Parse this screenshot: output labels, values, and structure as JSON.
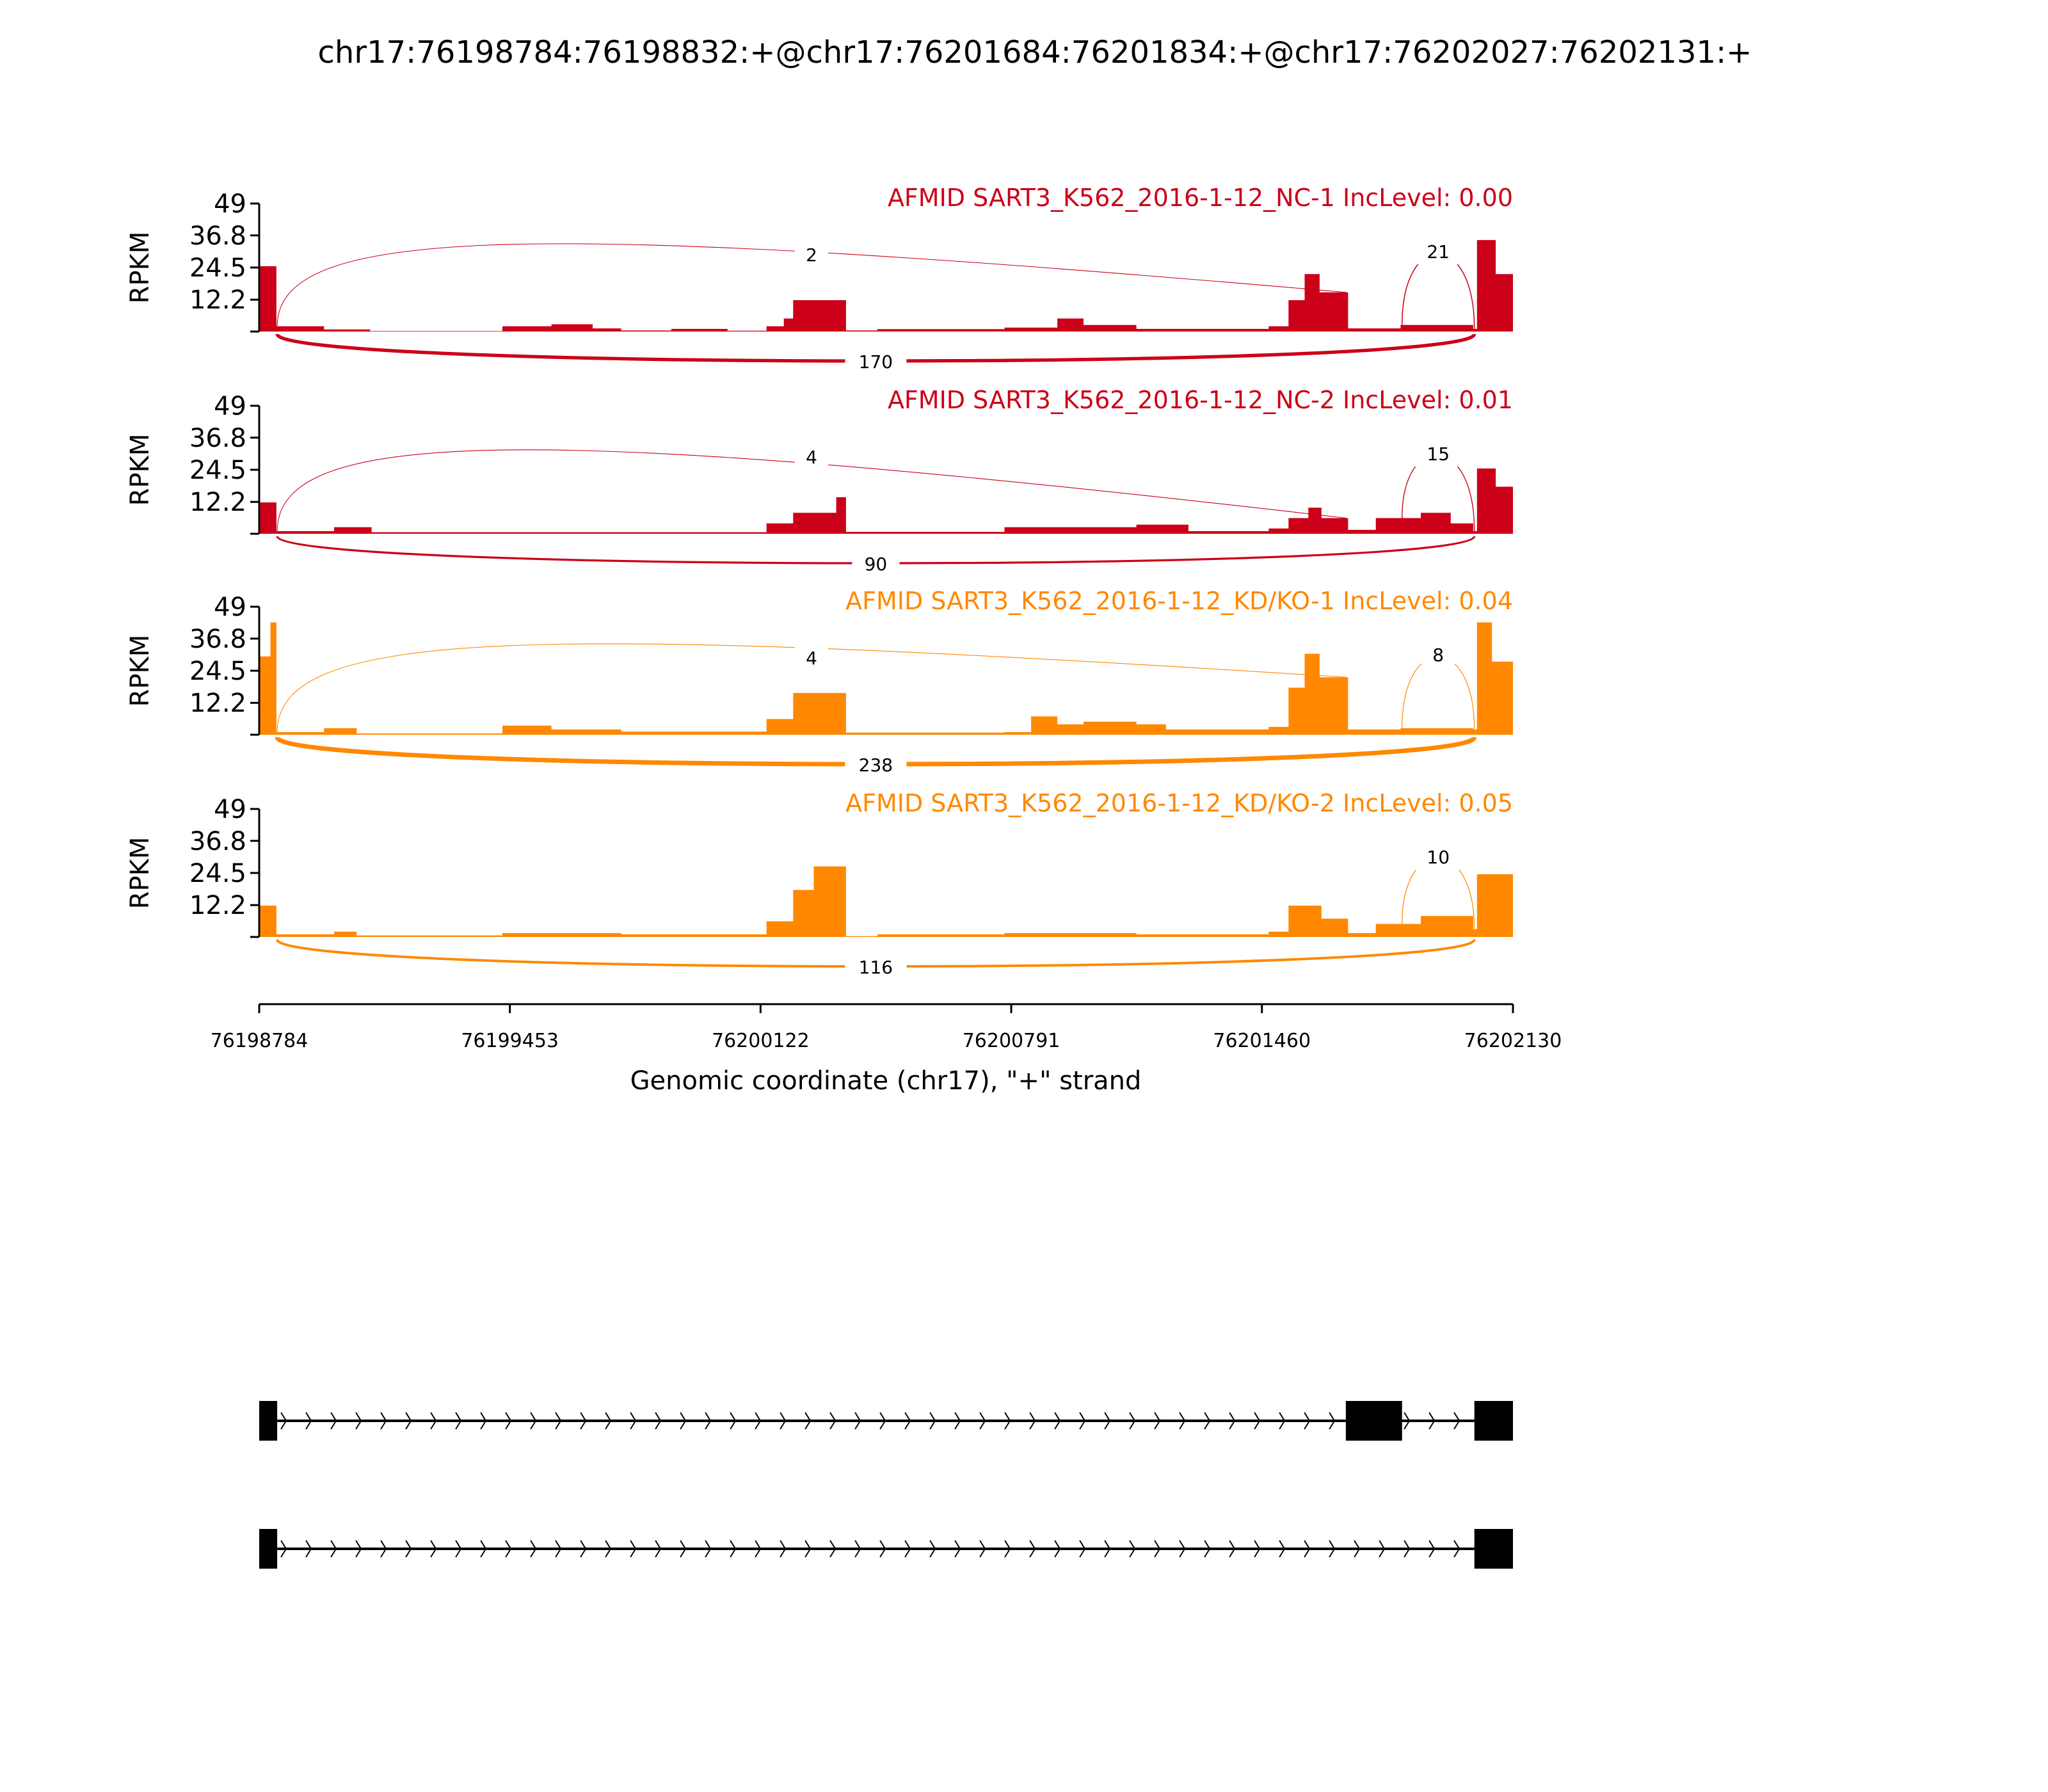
{
  "chart_data": {
    "type": "area",
    "title": "chr17:76198784:76198832:+@chr17:76201684:76201834:+@chr17:76202027:76202131:+",
    "xlabel": "Genomic coordinate (chr17), \"+\" strand",
    "ylabel": "RPKM",
    "xlim": [
      76198784,
      76202130
    ],
    "ylim": [
      0,
      49
    ],
    "x_ticks": [
      "76198784",
      "76199453",
      "76200122",
      "76200791",
      "76201460",
      "76202130"
    ],
    "y_ticks": [
      "49",
      "36.8",
      "24.5",
      "12.2"
    ],
    "colors": {
      "NC": "#CC0018",
      "KD": "#FF8800",
      "gene": "#000000"
    },
    "samples": [
      {
        "label": "AFMID SART3_K562_2016-1-12_NC-1 IncLevel: 0.00",
        "group": "NC",
        "coverage_note": "segments: [start_offset_bp, end_offset_bp, rpkm]",
        "coverage": [
          [
            0,
            46,
            25
          ],
          [
            46,
            173,
            2
          ],
          [
            173,
            296,
            0.8
          ],
          [
            296,
            649,
            0.2
          ],
          [
            649,
            780,
            2
          ],
          [
            780,
            890,
            2.8
          ],
          [
            890,
            966,
            1.2
          ],
          [
            966,
            1100,
            0.4
          ],
          [
            1100,
            1250,
            1
          ],
          [
            1250,
            1354,
            0.3
          ],
          [
            1354,
            1400,
            2
          ],
          [
            1400,
            1425,
            5
          ],
          [
            1425,
            1566,
            12
          ],
          [
            1566,
            1650,
            0.4
          ],
          [
            1650,
            1989,
            0.9
          ],
          [
            1989,
            2130,
            1.5
          ],
          [
            2130,
            2200,
            5
          ],
          [
            2200,
            2341,
            2.5
          ],
          [
            2341,
            2694,
            1
          ],
          [
            2694,
            2747,
            2
          ],
          [
            2747,
            2790,
            12
          ],
          [
            2790,
            2830,
            22
          ],
          [
            2830,
            2906,
            15
          ],
          [
            2906,
            3046,
            1.2
          ],
          [
            3046,
            3240,
            2.5
          ],
          [
            3240,
            3250,
            1
          ],
          [
            3250,
            3300,
            35
          ],
          [
            3300,
            3346,
            22
          ]
        ],
        "junctions": [
          {
            "from": 76198832,
            "to": 76201684,
            "count": "2",
            "side": "above"
          },
          {
            "from": 76201834,
            "to": 76202027,
            "count": "21",
            "side": "above"
          },
          {
            "from": 76198832,
            "to": 76202027,
            "count": "170",
            "side": "below"
          }
        ]
      },
      {
        "label": "AFMID SART3_K562_2016-1-12_NC-2 IncLevel: 0.01",
        "group": "NC",
        "coverage_note": "segments: [start_offset_bp, end_offset_bp, rpkm]",
        "coverage": [
          [
            0,
            46,
            12
          ],
          [
            46,
            200,
            1
          ],
          [
            200,
            300,
            2.5
          ],
          [
            300,
            1354,
            0.6
          ],
          [
            1354,
            1425,
            4
          ],
          [
            1425,
            1540,
            8
          ],
          [
            1540,
            1566,
            14
          ],
          [
            1566,
            1989,
            0.7
          ],
          [
            1989,
            2341,
            2.5
          ],
          [
            2341,
            2480,
            3.5
          ],
          [
            2480,
            2694,
            1
          ],
          [
            2694,
            2747,
            2
          ],
          [
            2747,
            2800,
            6
          ],
          [
            2800,
            2835,
            10
          ],
          [
            2835,
            2906,
            6
          ],
          [
            2906,
            2980,
            1.5
          ],
          [
            2980,
            3100,
            6
          ],
          [
            3100,
            3180,
            8
          ],
          [
            3180,
            3240,
            4
          ],
          [
            3240,
            3250,
            1
          ],
          [
            3250,
            3300,
            25
          ],
          [
            3300,
            3346,
            18
          ]
        ],
        "junctions": [
          {
            "from": 76198832,
            "to": 76201684,
            "count": "4",
            "side": "above"
          },
          {
            "from": 76201834,
            "to": 76202027,
            "count": "15",
            "side": "above"
          },
          {
            "from": 76198832,
            "to": 76202027,
            "count": "90",
            "side": "below"
          }
        ]
      },
      {
        "label": "AFMID SART3_K562_2016-1-12_KD/KO-1 IncLevel: 0.04",
        "group": "KD",
        "coverage_note": "segments: [start_offset_bp, end_offset_bp, rpkm]",
        "coverage": [
          [
            0,
            30,
            30
          ],
          [
            30,
            46,
            43
          ],
          [
            46,
            173,
            1
          ],
          [
            173,
            260,
            2.5
          ],
          [
            260,
            649,
            0.5
          ],
          [
            649,
            780,
            3.5
          ],
          [
            780,
            966,
            2
          ],
          [
            966,
            1354,
            1.2
          ],
          [
            1354,
            1425,
            6
          ],
          [
            1425,
            1566,
            16
          ],
          [
            1566,
            1989,
            0.8
          ],
          [
            1989,
            2060,
            1
          ],
          [
            2060,
            2130,
            7
          ],
          [
            2130,
            2200,
            4
          ],
          [
            2200,
            2341,
            5
          ],
          [
            2341,
            2420,
            4
          ],
          [
            2420,
            2694,
            2
          ],
          [
            2694,
            2747,
            3
          ],
          [
            2747,
            2790,
            18
          ],
          [
            2790,
            2830,
            31
          ],
          [
            2830,
            2906,
            22
          ],
          [
            2906,
            3046,
            2
          ],
          [
            3046,
            3240,
            2.5
          ],
          [
            3240,
            3250,
            2
          ],
          [
            3250,
            3290,
            43
          ],
          [
            3290,
            3346,
            28
          ]
        ],
        "junctions": [
          {
            "from": 76198832,
            "to": 76201684,
            "count": "4",
            "side": "above"
          },
          {
            "from": 76201834,
            "to": 76202027,
            "count": "8",
            "side": "above"
          },
          {
            "from": 76198832,
            "to": 76202027,
            "count": "238",
            "side": "below"
          }
        ]
      },
      {
        "label": "AFMID SART3_K562_2016-1-12_KD/KO-2 IncLevel: 0.05",
        "group": "KD",
        "coverage_note": "segments: [start_offset_bp, end_offset_bp, rpkm]",
        "coverage": [
          [
            0,
            46,
            12
          ],
          [
            46,
            200,
            1
          ],
          [
            200,
            260,
            2
          ],
          [
            260,
            649,
            0.6
          ],
          [
            649,
            966,
            1.5
          ],
          [
            966,
            1354,
            1
          ],
          [
            1354,
            1425,
            6
          ],
          [
            1425,
            1480,
            18
          ],
          [
            1480,
            1566,
            27
          ],
          [
            1566,
            1650,
            0.3
          ],
          [
            1650,
            1989,
            1
          ],
          [
            1989,
            2341,
            1.5
          ],
          [
            2341,
            2694,
            1
          ],
          [
            2694,
            2747,
            2
          ],
          [
            2747,
            2835,
            12
          ],
          [
            2835,
            2906,
            7
          ],
          [
            2906,
            2980,
            1.5
          ],
          [
            2980,
            3100,
            5
          ],
          [
            3100,
            3240,
            8
          ],
          [
            3240,
            3250,
            3
          ],
          [
            3250,
            3346,
            24
          ]
        ],
        "junctions": [
          {
            "from": 76201834,
            "to": 76202027,
            "count": "10",
            "side": "above"
          },
          {
            "from": 76198832,
            "to": 76202027,
            "count": "116",
            "side": "below"
          }
        ]
      }
    ],
    "gene_models": [
      {
        "exons": [
          [
            76198784,
            76198832
          ],
          [
            76201684,
            76201834
          ],
          [
            76202027,
            76202130
          ]
        ],
        "strand": "+"
      },
      {
        "exons": [
          [
            76198784,
            76198832
          ],
          [
            76202027,
            76202130
          ]
        ],
        "strand": "+"
      }
    ]
  }
}
